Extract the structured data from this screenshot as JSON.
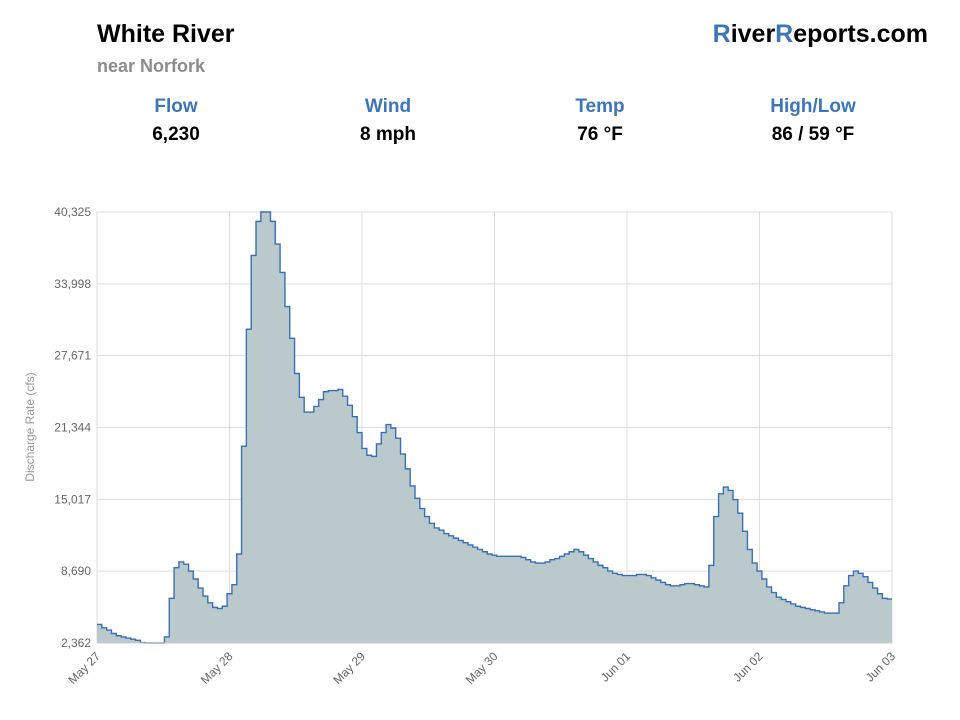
{
  "header": {
    "title": "White River",
    "subtitle": "near Norfork",
    "brand": {
      "r1": "R",
      "part1": "iver",
      "r2": "R",
      "part2": "eports.com"
    }
  },
  "stats": [
    {
      "label": "Flow",
      "value": "6,230"
    },
    {
      "label": "Wind",
      "value": "8 mph"
    },
    {
      "label": "Temp",
      "value": "76 °F"
    },
    {
      "label": "High/Low",
      "value": "86 / 59 °F"
    }
  ],
  "colors": {
    "accent": "#3d76b8",
    "line": "#3a6fb4",
    "fill": "#b9c9cc",
    "grid": "#dddddd"
  },
  "chart_data": {
    "type": "area",
    "style": "step",
    "ylabel": "Discharge Rate (cfs)",
    "ylim": [
      2362,
      40325
    ],
    "yticks": [
      2362,
      8690,
      15017,
      21344,
      27671,
      33998,
      40325
    ],
    "ytick_labels": [
      "2,362",
      "8,690",
      "15,017",
      "21,344",
      "27,671",
      "33,998",
      "40,325"
    ],
    "xlim": [
      0,
      6
    ],
    "xtick_labels": [
      "May 27",
      "May 28",
      "May 29",
      "May 30",
      "Jun 01",
      "Jun 02",
      "Jun 03"
    ],
    "grid": true,
    "values": [
      4000,
      3700,
      3500,
      3200,
      3000,
      2900,
      2800,
      2700,
      2600,
      2400,
      2362,
      2362,
      2362,
      2362,
      2900,
      6300,
      9000,
      9500,
      9300,
      8700,
      8000,
      7200,
      6500,
      5900,
      5500,
      5400,
      5600,
      6700,
      7500,
      10200,
      19700,
      30000,
      36500,
      39500,
      40325,
      40325,
      39500,
      37500,
      35000,
      32000,
      29200,
      26100,
      24000,
      22700,
      22700,
      23200,
      23800,
      24500,
      24600,
      24600,
      24700,
      24100,
      23300,
      22300,
      20900,
      19500,
      18900,
      18800,
      19900,
      20900,
      21600,
      21300,
      20400,
      19000,
      17700,
      16200,
      15100,
      14200,
      13500,
      12900,
      12500,
      12300,
      12000,
      11800,
      11600,
      11400,
      11200,
      11000,
      10800,
      10600,
      10400,
      10200,
      10100,
      10000,
      10000,
      10000,
      10000,
      10000,
      9900,
      9700,
      9500,
      9400,
      9400,
      9500,
      9700,
      9800,
      10000,
      10200,
      10400,
      10600,
      10400,
      10100,
      9800,
      9500,
      9200,
      9000,
      8700,
      8500,
      8400,
      8300,
      8300,
      8300,
      8400,
      8400,
      8300,
      8100,
      7900,
      7700,
      7500,
      7400,
      7400,
      7500,
      7600,
      7600,
      7500,
      7400,
      7300,
      9200,
      13500,
      15500,
      16100,
      15800,
      15000,
      13800,
      12200,
      10600,
      9400,
      8700,
      8000,
      7300,
      6800,
      6400,
      6200,
      6000,
      5800,
      5600,
      5500,
      5400,
      5300,
      5200,
      5100,
      5000,
      5000,
      5000,
      5900,
      7400,
      8300,
      8700,
      8500,
      8200,
      7700,
      7200,
      6700,
      6300,
      6230
    ]
  }
}
